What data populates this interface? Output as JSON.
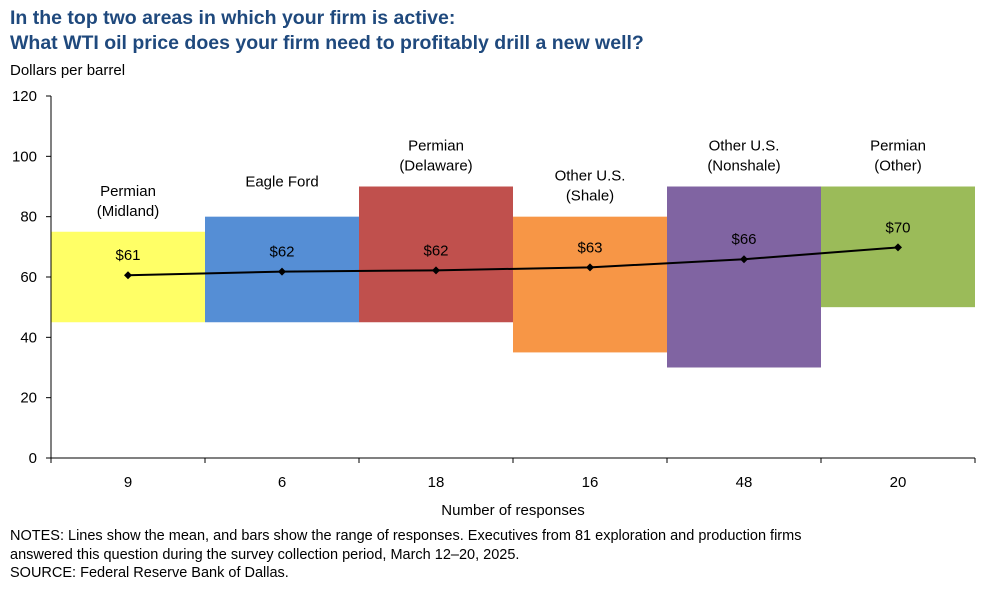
{
  "title_line1": "In the top two areas in which your firm is active:",
  "title_line2": "What WTI oil price does your firm need to profitably drill a new well?",
  "chart_data": {
    "type": "bar",
    "ylabel": "Dollars per barrel",
    "xlabel": "Number of responses",
    "ylim": [
      0,
      120
    ],
    "yticks": [
      0,
      20,
      40,
      60,
      80,
      100,
      120
    ],
    "categories": [
      {
        "line1": "Permian",
        "line2": "(Midland)"
      },
      {
        "line1": "Eagle Ford",
        "line2": ""
      },
      {
        "line1": "Permian",
        "line2": "(Delaware)"
      },
      {
        "line1": "Other U.S.",
        "line2": "(Shale)"
      },
      {
        "line1": "Other U.S.",
        "line2": "(Nonshale)"
      },
      {
        "line1": "Permian",
        "line2": "(Other)"
      }
    ],
    "responses": [
      "9",
      "6",
      "18",
      "16",
      "48",
      "20"
    ],
    "range_low": [
      45,
      45,
      45,
      35,
      30,
      50
    ],
    "range_high": [
      75,
      80,
      90,
      80,
      90,
      90
    ],
    "mean": [
      60.6,
      61.8,
      62.2,
      63.2,
      65.9,
      69.8
    ],
    "mean_labels": [
      "$61",
      "$62",
      "$62",
      "$63",
      "$66",
      "$70"
    ],
    "colors": [
      "#ffff66",
      "#558ed5",
      "#c0504d",
      "#f79646",
      "#8064a2",
      "#9bbb59"
    ],
    "line_color": "#000000"
  },
  "notes_line1": "NOTES: Lines show the mean, and bars show the range of responses. Executives from 81 exploration and production firms",
  "notes_line2": "answered this question during the survey collection period, March 12–20, 2025.",
  "source": "SOURCE: Federal Reserve Bank of Dallas."
}
